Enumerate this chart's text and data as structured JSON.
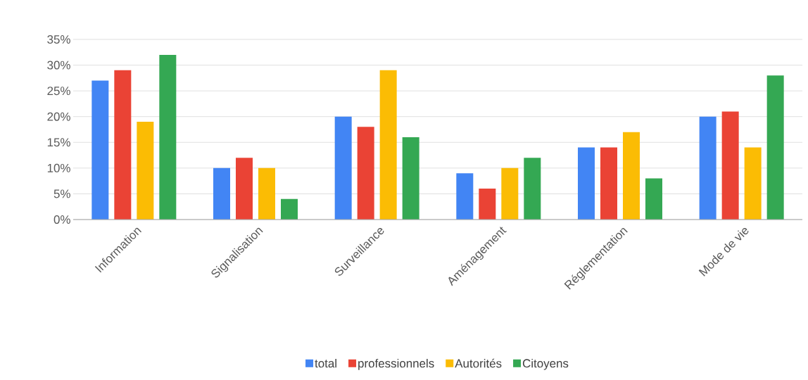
{
  "chart_data": {
    "type": "bar",
    "categories": [
      "Information",
      "Signalisation",
      "Surveillance",
      "Aménagement",
      "Réglementation",
      "Mode de vie"
    ],
    "series": [
      {
        "name": "total",
        "color": "#4285f4",
        "values": [
          27,
          10,
          20,
          9,
          14,
          20
        ]
      },
      {
        "name": "professionnels",
        "color": "#ea4335",
        "values": [
          29,
          12,
          18,
          6,
          14,
          21
        ]
      },
      {
        "name": "Autorités",
        "color": "#fbbc04",
        "values": [
          19,
          10,
          29,
          10,
          17,
          14
        ]
      },
      {
        "name": "Citoyens",
        "color": "#34a853",
        "values": [
          32,
          4,
          16,
          12,
          8,
          28
        ]
      }
    ],
    "ylim": [
      0,
      35
    ],
    "yticks": [
      {
        "value": 0,
        "label": "0%"
      },
      {
        "value": 5,
        "label": "5%"
      },
      {
        "value": 10,
        "label": "10%"
      },
      {
        "value": 15,
        "label": "15%"
      },
      {
        "value": 20,
        "label": "20%"
      },
      {
        "value": 25,
        "label": "25%"
      },
      {
        "value": 30,
        "label": "30%"
      },
      {
        "value": 35,
        "label": "35%"
      }
    ],
    "grid": "y",
    "legend": "bottom"
  }
}
